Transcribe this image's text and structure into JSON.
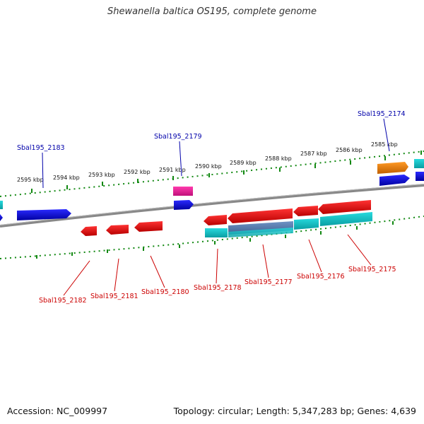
{
  "title": "Shewanella baltica OS195, complete genome",
  "footer": {
    "accession": "Accession: NC_009997",
    "summary": "Topology: circular; Length: 5,347,283 bp; Genes: 4,639"
  },
  "scale_labels": [
    "2595 kbp",
    "2594 kbp",
    "2593 kbp",
    "2592 kbp",
    "2591 kbp",
    "2590 kbp",
    "2589 kbp",
    "2588 kbp",
    "2587 kbp",
    "2586 kbp",
    "2585 kbp"
  ],
  "upper_gene_labels": [
    "Sbal195_2183",
    "Sbal195_2179",
    "Sbal195_2174"
  ],
  "lower_gene_labels": [
    "Sbal195_2182",
    "Sbal195_2181",
    "Sbal195_2180",
    "Sbal195_2178",
    "Sbal195_2177",
    "Sbal195_2176",
    "Sbal195_2175"
  ],
  "colors": {
    "forward_cds": "#1010dd",
    "reverse_cds": "#ee1111",
    "rna": "#ee2299",
    "cog_cyan": "#19c4c8",
    "cog_orange": "#f08010",
    "cog_slate": "#5a7fb0",
    "tick_green": "#118811",
    "backbone": "#888888"
  }
}
